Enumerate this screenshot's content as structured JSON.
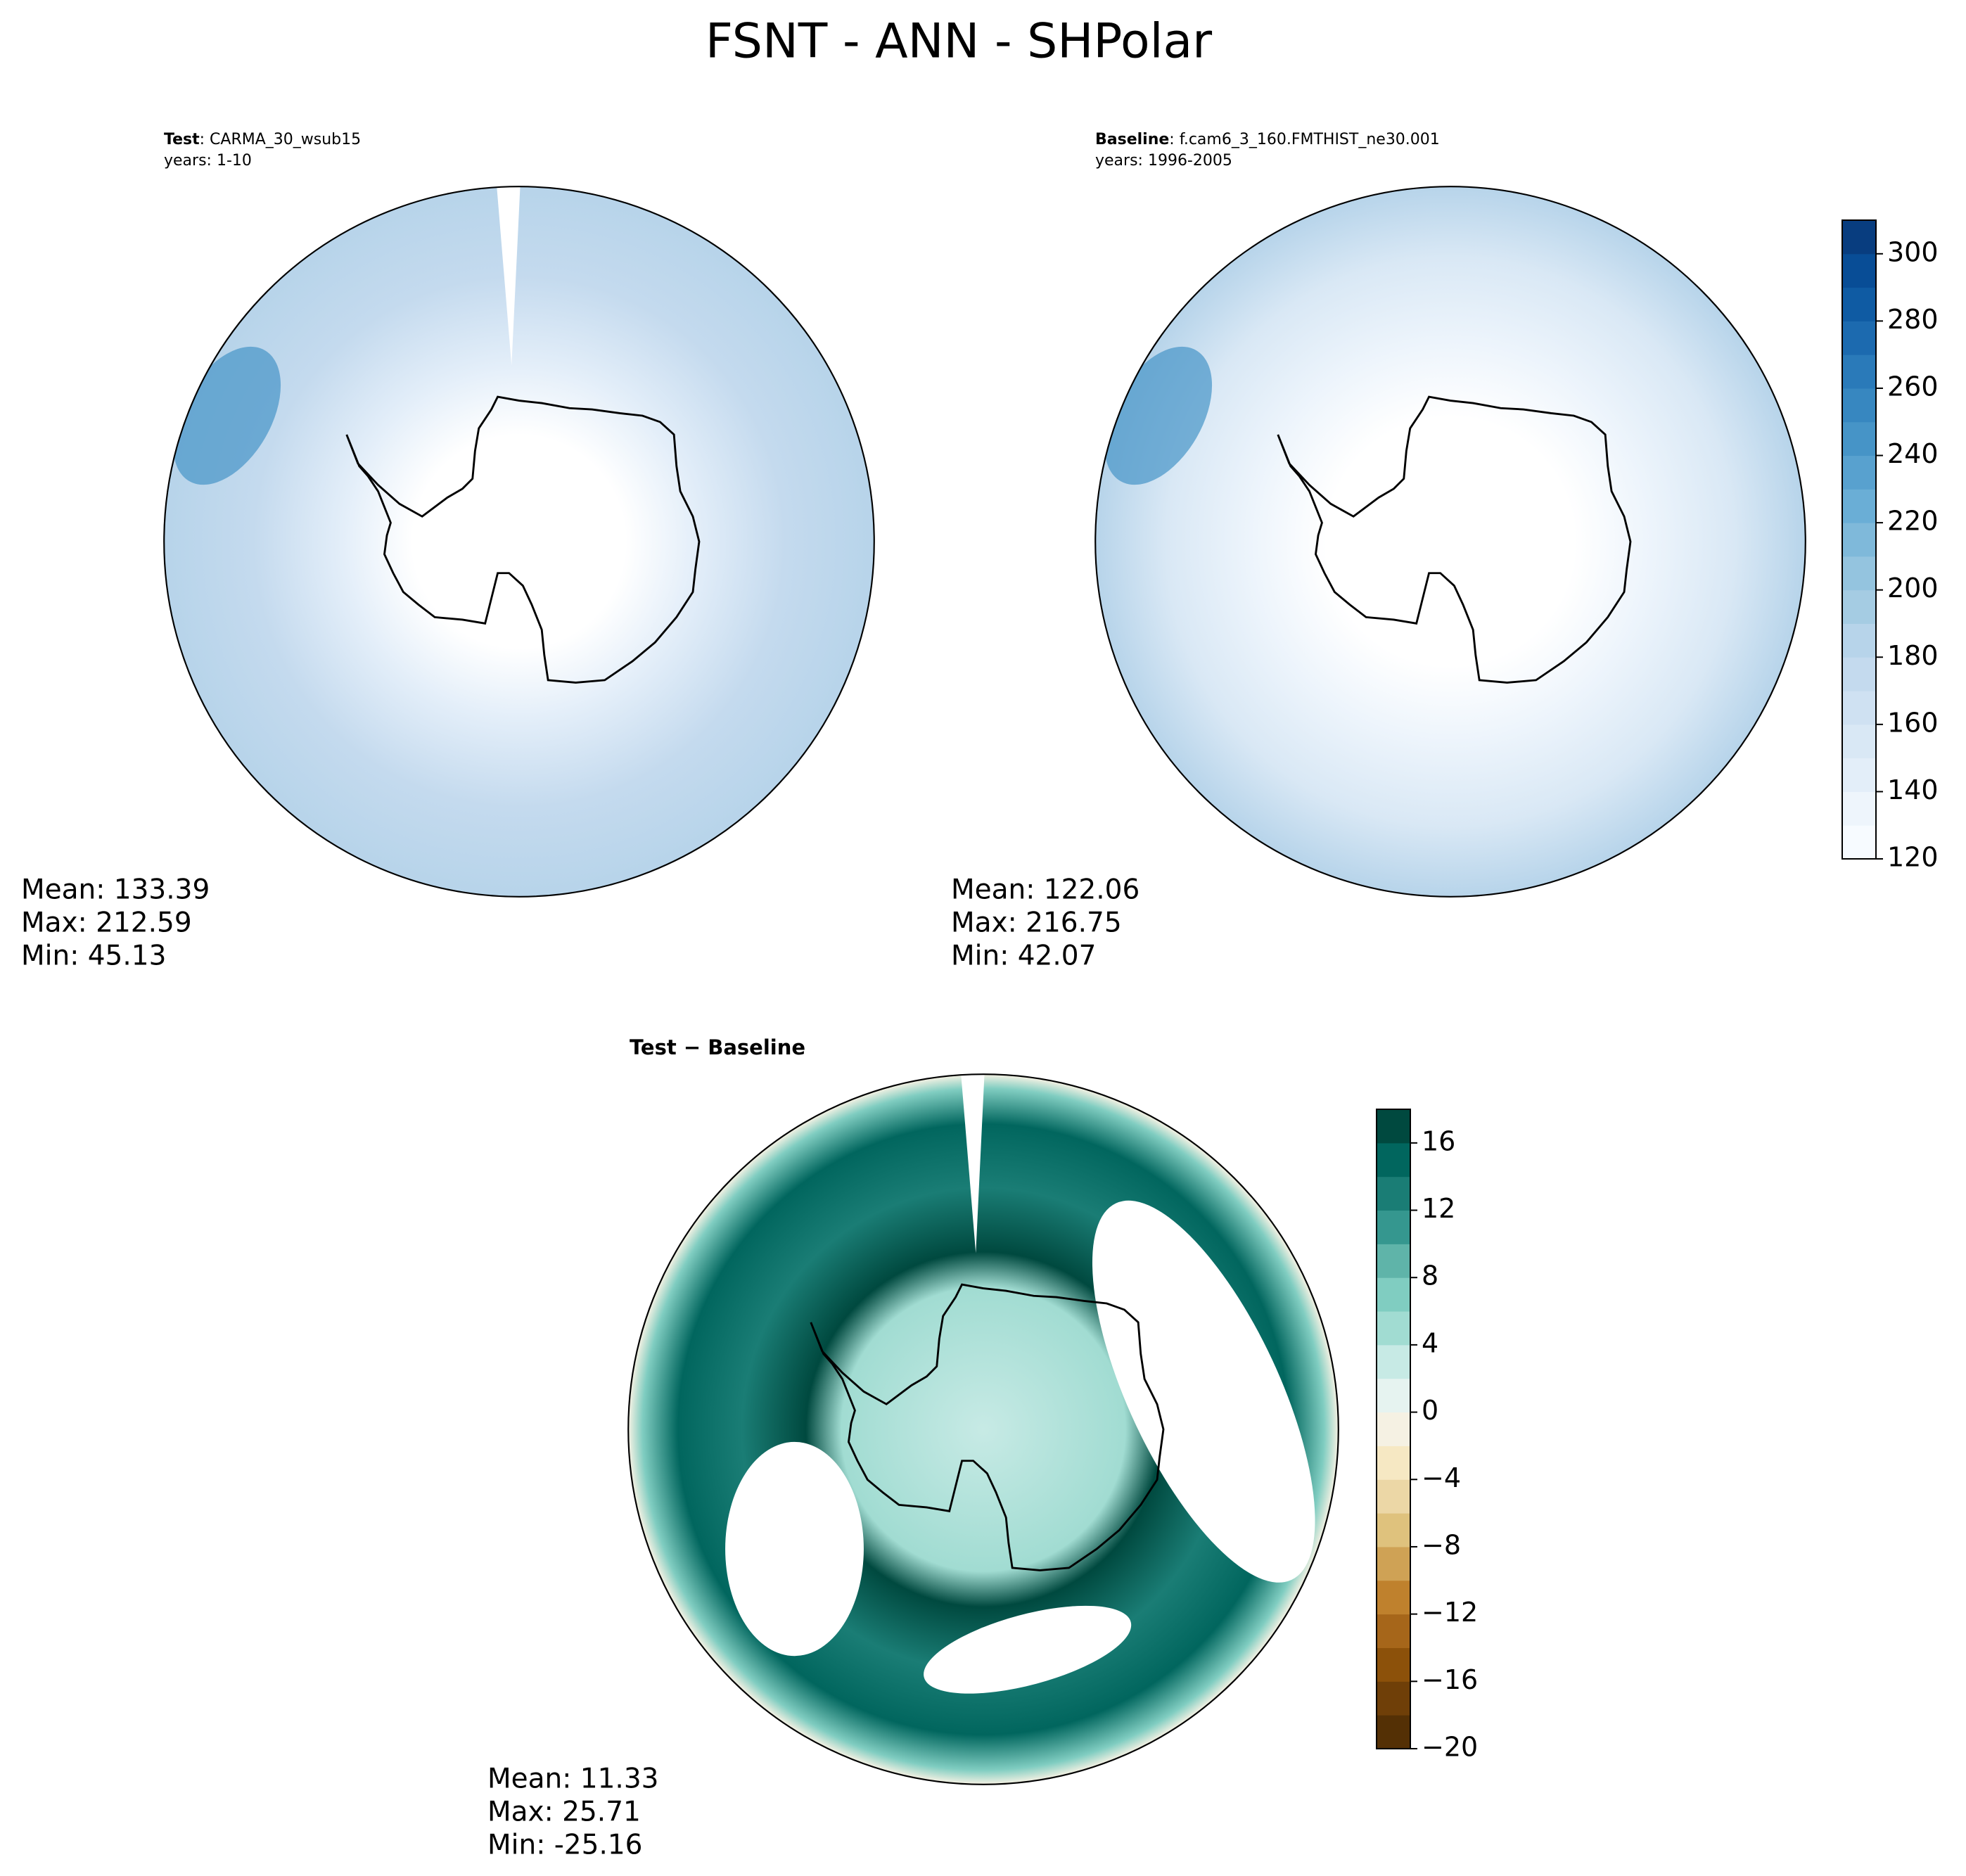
{
  "title": "FSNT - ANN - SHPolar",
  "chart_data": [
    {
      "type": "map",
      "title_bold": "Test",
      "title_rest": ": CARMA_30_wsub15",
      "subtitle": "years: 1-10",
      "stats": [
        "Mean: 133.39",
        "Max: 212.59",
        "Min: 45.13"
      ]
    },
    {
      "type": "map",
      "title_bold": "Baseline",
      "title_rest": ": f.cam6_3_160.FMTHIST_ne30.001",
      "subtitle": "years: 1996-2005",
      "stats": [
        "Mean: 122.06",
        "Max: 216.75",
        "Min: 42.07"
      ],
      "colorbar": {
        "ylim": [
          120,
          310
        ],
        "yticks": [
          120,
          140,
          160,
          180,
          200,
          220,
          240,
          260,
          280,
          300
        ],
        "colors": [
          "#f7fbff",
          "#eef5fc",
          "#e3eef9",
          "#d9e8f5",
          "#cfe1f2",
          "#c4daee",
          "#b7d4ea",
          "#a5cce3",
          "#94c4df",
          "#7fb9da",
          "#6aaed6",
          "#58a1cf",
          "#4694c7",
          "#3787c0",
          "#2a7ab9",
          "#1c6aaf",
          "#0f5ba3",
          "#084d96",
          "#083d7f"
        ]
      }
    },
    {
      "type": "map",
      "title_bold": "Test − Baseline",
      "stats": [
        "Mean: 11.33",
        "Max: 25.71",
        "Min: -25.16"
      ],
      "colorbar": {
        "ylim": [
          -20,
          18
        ],
        "yticks": [
          {
            "value": -20,
            "label": "−20"
          },
          {
            "value": -16,
            "label": "−16"
          },
          {
            "value": -12,
            "label": "−12"
          },
          {
            "value": -8,
            "label": "−8"
          },
          {
            "value": -4,
            "label": "−4"
          },
          0,
          4,
          8,
          12,
          16
        ],
        "colors": [
          "#543005",
          "#6f3f08",
          "#8c510a",
          "#a6661a",
          "#bf812d",
          "#cfa255",
          "#dfc27d",
          "#ecd7a6",
          "#f6e8c3",
          "#f5f1e3",
          "#e6f3f0",
          "#c7eae5",
          "#a1dcd2",
          "#80cdc1",
          "#5fb4a9",
          "#35978f",
          "#1a7d75",
          "#01665e",
          "#00493f"
        ]
      }
    }
  ]
}
